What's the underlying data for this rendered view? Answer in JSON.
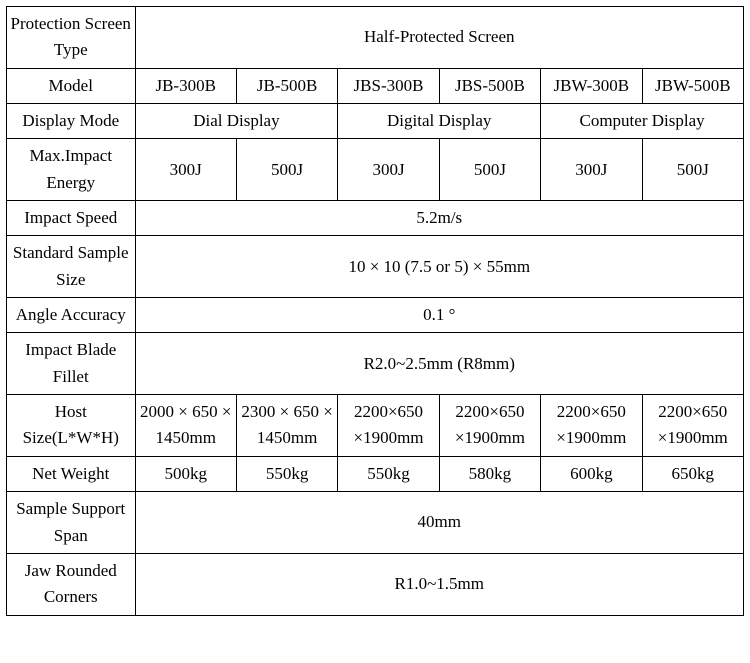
{
  "table": {
    "protection_screen_type": {
      "label": "Protection Screen Type",
      "value": "Half-Protected Screen"
    },
    "model": {
      "label": "Model",
      "values": [
        "JB-300B",
        "JB-500B",
        "JBS-300B",
        "JBS-500B",
        "JBW-300B",
        "JBW-500B"
      ]
    },
    "display_mode": {
      "label": "Display Mode",
      "values": [
        "Dial Display",
        "Digital Display",
        "Computer Display"
      ]
    },
    "max_impact_energy": {
      "label": "Max.Impact Energy",
      "values": [
        "300J",
        "500J",
        "300J",
        "500J",
        "300J",
        "500J"
      ]
    },
    "impact_speed": {
      "label": "Impact Speed",
      "value": "5.2m/s"
    },
    "standard_sample_size": {
      "label": "Standard Sample Size",
      "value": "10 × 10 (7.5 or 5) × 55mm"
    },
    "angle_accuracy": {
      "label": "Angle Accuracy",
      "value": "0.1 °"
    },
    "impact_blade_fillet": {
      "label": "Impact Blade Fillet",
      "value": "R2.0~2.5mm (R8mm)"
    },
    "host_size": {
      "label": "Host Size(L*W*H)",
      "values": [
        "2000 × 650 × 1450mm",
        "2300 × 650 × 1450mm",
        "2200×650 ×1900mm",
        "2200×650 ×1900mm",
        "2200×650 ×1900mm",
        "2200×650 ×1900mm"
      ]
    },
    "net_weight": {
      "label": "Net Weight",
      "values": [
        "500kg",
        "550kg",
        "550kg",
        "580kg",
        "600kg",
        "650kg"
      ]
    },
    "sample_support_span": {
      "label": "Sample Support Span",
      "value": "40mm"
    },
    "jaw_rounded_corners": {
      "label": "Jaw Rounded Corners",
      "value": "R1.0~1.5mm"
    }
  },
  "style": {
    "font_family": "Times New Roman",
    "font_size_pt": 13,
    "border_color": "#000000",
    "background_color": "#ffffff",
    "text_color": "#000000"
  }
}
